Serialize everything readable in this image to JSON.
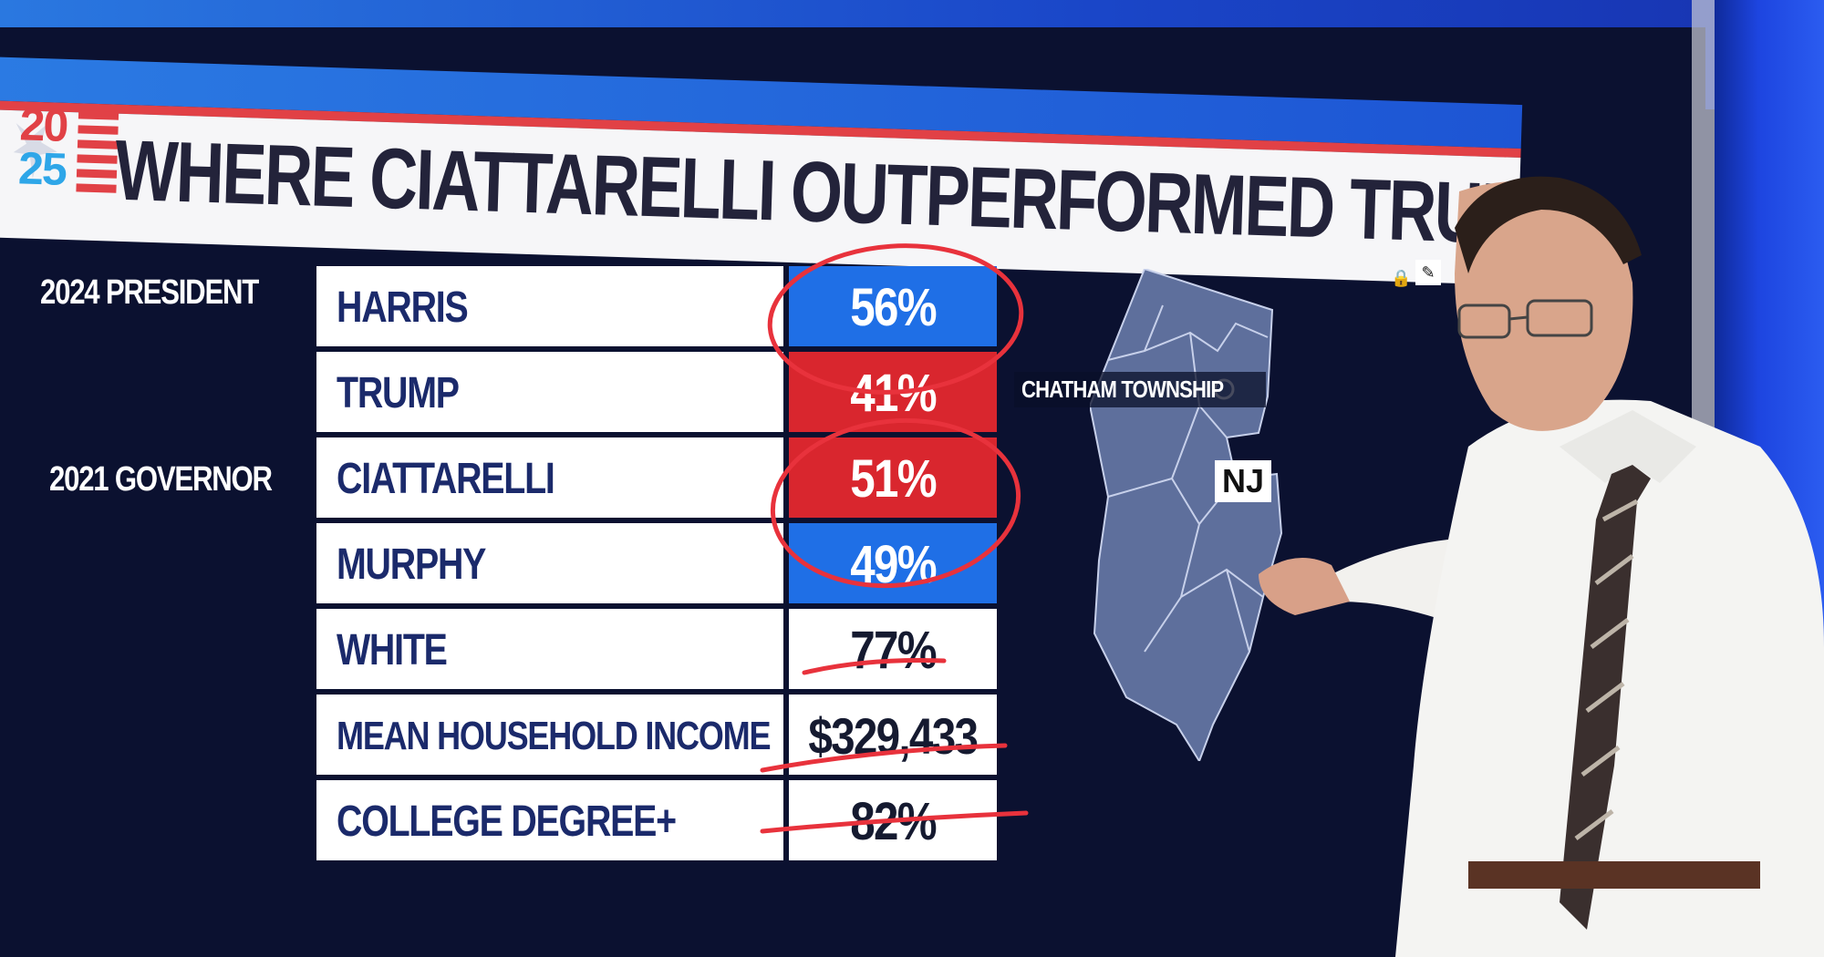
{
  "graphic": {
    "logo_year_top": "20",
    "logo_year_bottom": "25",
    "title": "WHERE CIATTARELLI OUTPERFORMED TRUMP"
  },
  "sections": {
    "president": "2024 PRESIDENT",
    "governor": "2021 GOVERNOR"
  },
  "rows": [
    {
      "label": "HARRIS",
      "value": "56%",
      "party": "dem"
    },
    {
      "label": "TRUMP",
      "value": "41%",
      "party": "rep"
    },
    {
      "label": "CIATTARELLI",
      "value": "51%",
      "party": "rep"
    },
    {
      "label": "MURPHY",
      "value": "49%",
      "party": "dem"
    },
    {
      "label": "WHITE",
      "value": "77%",
      "party": "none"
    },
    {
      "label": "MEAN HOUSEHOLD INCOME",
      "value": "$329,433",
      "party": "none"
    },
    {
      "label": "COLLEGE DEGREE+",
      "value": "82%",
      "party": "none"
    }
  ],
  "map": {
    "location_label": "CHATHAM TOWNSHIP",
    "state_label": "NJ"
  },
  "colors": {
    "dem": "#1f6fe6",
    "rep": "#d9262e",
    "background": "#0b1130",
    "annotation": "#e8323c"
  }
}
